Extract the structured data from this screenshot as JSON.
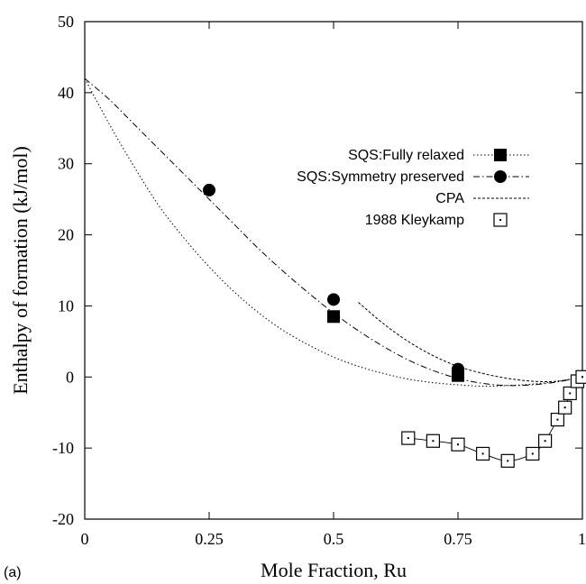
{
  "chart_data": {
    "type": "line",
    "panel_label": "(a)",
    "xlabel": "Mole Fraction, Ru",
    "ylabel": "Enthalpy of formation (kJ/mol)",
    "xlim": [
      0,
      1
    ],
    "ylim": [
      -20,
      50
    ],
    "x_ticks": [
      {
        "value": 0,
        "label": "0"
      },
      {
        "value": 0.25,
        "label": "0.25"
      },
      {
        "value": 0.5,
        "label": "0.5"
      },
      {
        "value": 0.75,
        "label": "0.75"
      },
      {
        "value": 1,
        "label": "1"
      }
    ],
    "y_ticks": [
      {
        "value": -20,
        "label": "-20"
      },
      {
        "value": -10,
        "label": "-10"
      },
      {
        "value": 0,
        "label": "0"
      },
      {
        "value": 10,
        "label": "10"
      },
      {
        "value": 20,
        "label": "20"
      },
      {
        "value": 30,
        "label": "30"
      },
      {
        "value": 40,
        "label": "40"
      },
      {
        "value": 50,
        "label": "50"
      }
    ],
    "grid": false,
    "legend_position": "top-right",
    "series": [
      {
        "name": "SQS:Fully relaxed",
        "marker": "filled-square",
        "line": "dotted",
        "color": "#000000",
        "points": [
          {
            "x": 0.5,
            "y": 8.5
          },
          {
            "x": 0.75,
            "y": 0.2
          }
        ],
        "curve": [
          {
            "x": 0,
            "y": 42
          },
          {
            "x": 0.05,
            "y": 35.5
          },
          {
            "x": 0.1,
            "y": 29.5
          },
          {
            "x": 0.15,
            "y": 24
          },
          {
            "x": 0.2,
            "y": 19.5
          },
          {
            "x": 0.25,
            "y": 15.5
          },
          {
            "x": 0.3,
            "y": 12
          },
          {
            "x": 0.35,
            "y": 9
          },
          {
            "x": 0.4,
            "y": 6.5
          },
          {
            "x": 0.45,
            "y": 4.5
          },
          {
            "x": 0.5,
            "y": 2.8
          },
          {
            "x": 0.55,
            "y": 1.5
          },
          {
            "x": 0.6,
            "y": 0.5
          },
          {
            "x": 0.65,
            "y": -0.3
          },
          {
            "x": 0.7,
            "y": -0.8
          },
          {
            "x": 0.75,
            "y": -1.1
          },
          {
            "x": 0.8,
            "y": -1.3
          },
          {
            "x": 0.85,
            "y": -1.2
          },
          {
            "x": 0.9,
            "y": -1
          },
          {
            "x": 0.95,
            "y": -0.6
          },
          {
            "x": 1,
            "y": 0
          }
        ]
      },
      {
        "name": "SQS:Symmetry preserved",
        "marker": "filled-circle",
        "line": "dash-dot",
        "color": "#000000",
        "points": [
          {
            "x": 0.25,
            "y": 26.3
          },
          {
            "x": 0.5,
            "y": 10.9
          },
          {
            "x": 0.75,
            "y": 1.1
          }
        ],
        "curve": [
          {
            "x": 0,
            "y": 42
          },
          {
            "x": 0.05,
            "y": 39
          },
          {
            "x": 0.1,
            "y": 35.5
          },
          {
            "x": 0.15,
            "y": 32
          },
          {
            "x": 0.2,
            "y": 28.5
          },
          {
            "x": 0.25,
            "y": 25
          },
          {
            "x": 0.3,
            "y": 21.5
          },
          {
            "x": 0.35,
            "y": 18
          },
          {
            "x": 0.4,
            "y": 14.8
          },
          {
            "x": 0.45,
            "y": 11.8
          },
          {
            "x": 0.5,
            "y": 9
          },
          {
            "x": 0.55,
            "y": 6.5
          },
          {
            "x": 0.6,
            "y": 4.3
          },
          {
            "x": 0.65,
            "y": 2.4
          },
          {
            "x": 0.7,
            "y": 0.9
          },
          {
            "x": 0.75,
            "y": -0.2
          },
          {
            "x": 0.8,
            "y": -0.9
          },
          {
            "x": 0.85,
            "y": -1.2
          },
          {
            "x": 0.9,
            "y": -1.1
          },
          {
            "x": 0.95,
            "y": -0.7
          },
          {
            "x": 1,
            "y": 0
          }
        ]
      },
      {
        "name": "CPA",
        "marker": "none",
        "line": "dashed",
        "color": "#000000",
        "points": [],
        "curve": [
          {
            "x": 0.55,
            "y": 10.5
          },
          {
            "x": 0.6,
            "y": 7.5
          },
          {
            "x": 0.65,
            "y": 5
          },
          {
            "x": 0.7,
            "y": 3
          },
          {
            "x": 0.75,
            "y": 1.5
          },
          {
            "x": 0.8,
            "y": 0.5
          },
          {
            "x": 0.85,
            "y": -0.2
          },
          {
            "x": 0.9,
            "y": -0.6
          },
          {
            "x": 0.95,
            "y": -0.6
          },
          {
            "x": 1,
            "y": 0
          }
        ]
      },
      {
        "name": "1988 Kleykamp",
        "marker": "open-square",
        "line": "solid-thin",
        "color": "#000000",
        "points": [
          {
            "x": 0.65,
            "y": -8.6
          },
          {
            "x": 0.7,
            "y": -9
          },
          {
            "x": 0.75,
            "y": -9.5
          },
          {
            "x": 0.8,
            "y": -10.8
          },
          {
            "x": 0.85,
            "y": -11.8
          },
          {
            "x": 0.9,
            "y": -10.8
          },
          {
            "x": 0.925,
            "y": -9
          },
          {
            "x": 0.95,
            "y": -6
          },
          {
            "x": 0.965,
            "y": -4.3
          },
          {
            "x": 0.975,
            "y": -2.3
          },
          {
            "x": 0.99,
            "y": -0.6
          },
          {
            "x": 1,
            "y": 0
          }
        ],
        "curve": [
          {
            "x": 0.65,
            "y": -8.6
          },
          {
            "x": 0.7,
            "y": -9
          },
          {
            "x": 0.75,
            "y": -9.5
          },
          {
            "x": 0.8,
            "y": -10.8
          },
          {
            "x": 0.85,
            "y": -11.8
          },
          {
            "x": 0.9,
            "y": -10.8
          },
          {
            "x": 0.925,
            "y": -9
          },
          {
            "x": 0.95,
            "y": -6
          },
          {
            "x": 0.965,
            "y": -4.3
          },
          {
            "x": 0.975,
            "y": -2.3
          },
          {
            "x": 0.99,
            "y": -0.6
          },
          {
            "x": 1,
            "y": 0
          }
        ]
      }
    ]
  }
}
